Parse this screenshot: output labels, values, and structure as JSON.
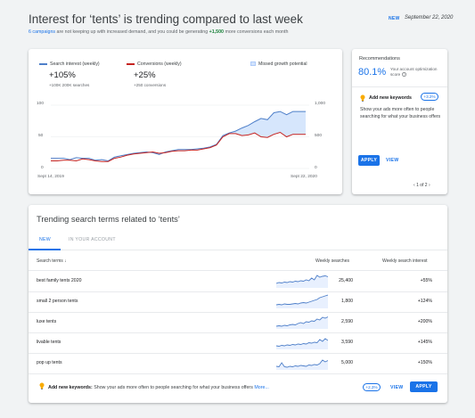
{
  "header": {
    "title": "Interest for ‘tents’ is trending compared to last week",
    "badge": "NEW",
    "date": "September 22, 2020",
    "subtitle_link": "6 campaigns",
    "subtitle_mid": " are not keeping up with increased demand, and you could be generating ",
    "subtitle_highlight": "+1,500",
    "subtitle_end": " more conversions each month"
  },
  "chart": {
    "legend": {
      "search": "Search interest (weekly)",
      "conversions": "Conversions (weekly)",
      "missed": "Missed growth potential"
    },
    "search_delta": "+105%",
    "search_detail": "+100K 200K searches",
    "conv_delta": "+25%",
    "conv_detail": "+250 conversions",
    "left_ticks": [
      "100",
      "50",
      "0"
    ],
    "right_ticks": [
      "1,000",
      "500",
      "0"
    ],
    "start_date": "Sept 14, 2019",
    "end_date": "Sept 22, 2020",
    "colors": {
      "search": "#4e7fc9",
      "conversions": "#c5221f",
      "missed": "#d2e3fc"
    }
  },
  "chart_data": {
    "type": "line",
    "x_start": "Sept 14, 2019",
    "x_end": "Sept 22, 2020",
    "ylim_left": [
      0,
      100
    ],
    "ylim_right": [
      0,
      1000
    ],
    "series": [
      {
        "name": "Search interest (weekly)",
        "values": [
          16,
          16,
          16,
          14,
          17,
          16,
          16,
          13,
          14,
          12,
          18,
          20,
          22,
          24,
          25,
          26,
          25,
          22,
          26,
          28,
          30,
          30,
          30,
          31,
          32,
          34,
          38,
          52,
          56,
          59,
          64,
          68,
          74,
          79,
          77,
          88,
          90,
          85,
          90,
          90,
          90
        ]
      },
      {
        "name": "Conversions (weekly)",
        "values": [
          12,
          12,
          13,
          13,
          12,
          15,
          14,
          12,
          11,
          11,
          16,
          18,
          21,
          23,
          24,
          25,
          26,
          24,
          25,
          27,
          28,
          28,
          29,
          29,
          31,
          33,
          37,
          50,
          55,
          55,
          52,
          53,
          56,
          50,
          49,
          54,
          57,
          50,
          54,
          54,
          54
        ]
      }
    ]
  },
  "recommendations": {
    "title": "Recommendations",
    "score": "80.1%",
    "score_label": "Your account optimization score",
    "help_icon": "help-icon",
    "keyword_title": "Add new keywords",
    "keyword_chip": "+3.2%",
    "description": "Show your ads more often to people searching for what your business offers",
    "apply": "APPLY",
    "view": "VIEW",
    "pager": "1 of 2"
  },
  "trending": {
    "title": "Trending search terms related to ‘tents’",
    "tabs": [
      "NEW",
      "IN YOUR ACCOUNT"
    ],
    "columns": {
      "term": "Search terms",
      "weekly": "Weekly searches",
      "interest": "Weekly search interest"
    },
    "rows": [
      {
        "term": "best family tents 2020",
        "searches": "25,400",
        "interest": "+55%",
        "trend": [
          10,
          12,
          11,
          13,
          12,
          14,
          13,
          15,
          14,
          16,
          15,
          18,
          16,
          22,
          18,
          28,
          24,
          26,
          27,
          25
        ]
      },
      {
        "term": "small 2 person tents",
        "searches": "1,800",
        "interest": "+124%",
        "trend": [
          8,
          9,
          8,
          10,
          9,
          9,
          10,
          11,
          10,
          12,
          13,
          12,
          14,
          16,
          18,
          20,
          24,
          26,
          28,
          30
        ]
      },
      {
        "term": "luxe tents",
        "searches": "2,590",
        "interest": "+200%",
        "trend": [
          6,
          7,
          6,
          8,
          7,
          9,
          10,
          9,
          12,
          14,
          12,
          16,
          15,
          18,
          17,
          22,
          20,
          26,
          24,
          27
        ]
      },
      {
        "term": "livable tents",
        "searches": "3,590",
        "interest": "+145%",
        "trend": [
          8,
          7,
          9,
          8,
          10,
          9,
          11,
          10,
          12,
          11,
          13,
          12,
          15,
          14,
          16,
          15,
          22,
          18,
          24,
          20
        ]
      },
      {
        "term": "pop up tents",
        "searches": "5,000",
        "interest": "+150%",
        "trend": [
          8,
          7,
          16,
          7,
          6,
          8,
          7,
          9,
          8,
          10,
          9,
          8,
          11,
          10,
          12,
          11,
          14,
          22,
          18,
          21
        ]
      }
    ],
    "footer": {
      "label": "Add new keywords:",
      "text": " Show your ads more often to people searching for what your business offers",
      "more": " More...",
      "chip": "+2.3%",
      "view": "VIEW",
      "apply": "APPLY"
    }
  }
}
